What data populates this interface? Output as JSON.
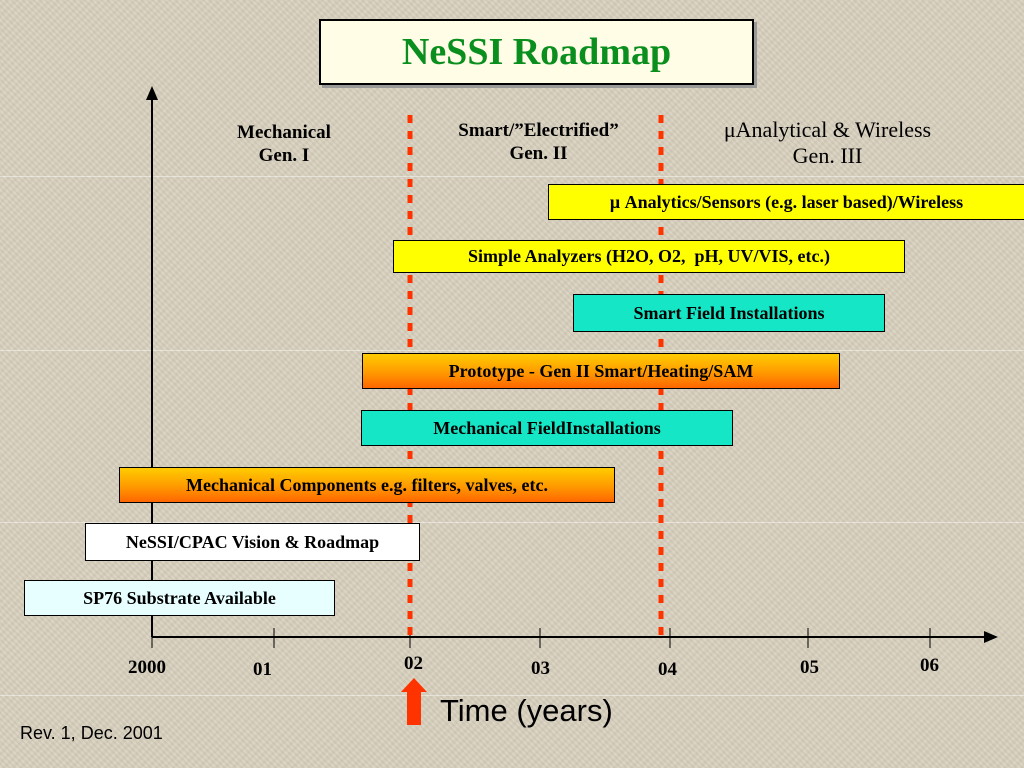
{
  "title": "NeSSI Roadmap",
  "generations": {
    "gen1": {
      "line1": "Mechanical",
      "line2": "Gen. I"
    },
    "gen2": {
      "line1": "Smart/”Electrified”",
      "line2": "Gen. II"
    },
    "gen3": {
      "line1": "μAnalytical & Wireless",
      "line2": "Gen. III"
    }
  },
  "bars": {
    "analytics": "μ Analytics/Sensors (e.g. laser based)/Wireless",
    "simple_analyzers_a": "Simple Analyzers",
    "simple_analyzers_b": " (H2O, O2,  pH, UV/VIS, etc.)",
    "smart_field": "Smart Field Installations",
    "prototype": "Prototype - Gen II Smart/Heating/SAM",
    "mech_field": "Mechanical FieldInstallations",
    "mech_components": "Mechanical Components e.g. filters, valves, etc.",
    "vision": "NeSSI/CPAC Vision & Roadmap",
    "sp76": "SP76 Substrate Available"
  },
  "years": [
    "2000",
    "01",
    "02",
    "03",
    "04",
    "05",
    "06"
  ],
  "x_axis_label": "Time (years)",
  "revision": "Rev. 1, Dec. 2001",
  "colors": {
    "title": "#0a8f1f",
    "yellow": "#ffff00",
    "teal": "#14e6c6",
    "orange": "#ff9900",
    "marker": "#ff3300",
    "arrow": "#ff3300"
  }
}
